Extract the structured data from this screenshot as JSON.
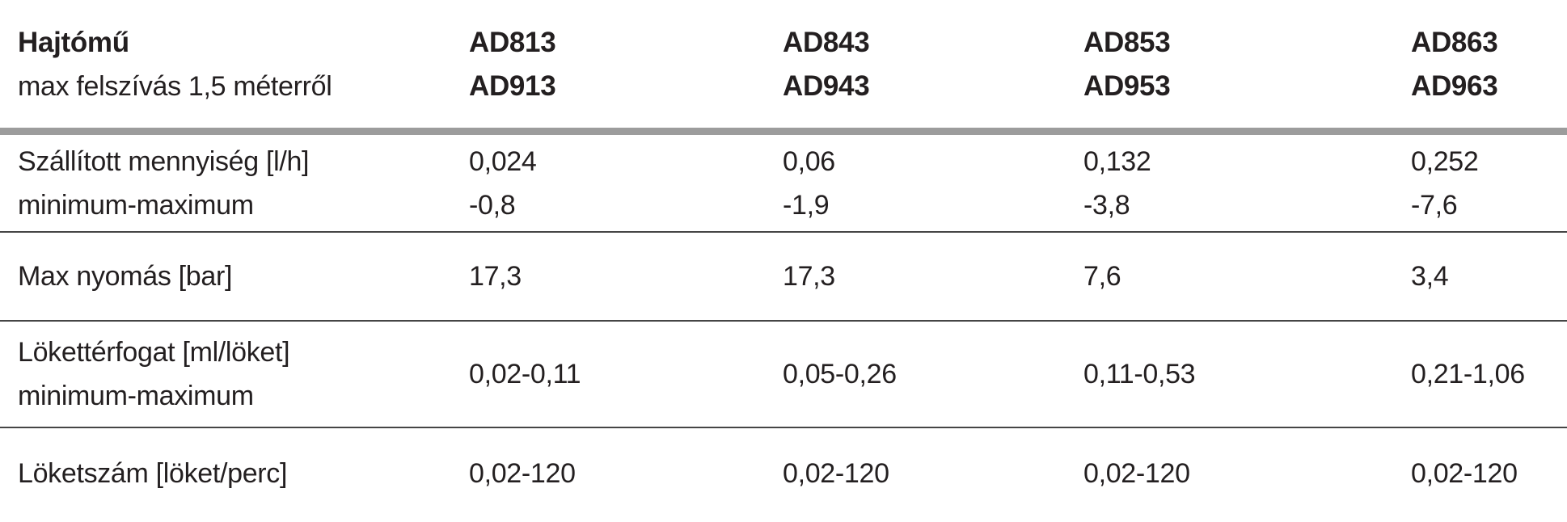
{
  "document": {
    "header": {
      "title": "Hajtómű",
      "subtitle": "max felszívás 1,5 méterről",
      "columns": [
        {
          "line1": "AD813",
          "line2": "AD913"
        },
        {
          "line1": "AD843",
          "line2": "AD943"
        },
        {
          "line1": "AD853",
          "line2": "AD953"
        },
        {
          "line1": "AD863",
          "line2": "AD963"
        }
      ]
    },
    "rows": [
      {
        "label_line1": "Szállított mennyiség [l/h]",
        "label_line2": "minimum-maximum",
        "values": [
          {
            "line1": "0,024",
            "line2": "-0,8"
          },
          {
            "line1": "0,06",
            "line2": "-1,9"
          },
          {
            "line1": "0,132",
            "line2": "-3,8"
          },
          {
            "line1": "0,252",
            "line2": "-7,6"
          }
        ]
      },
      {
        "label_line1": "Max nyomás [bar]",
        "values": [
          "17,3",
          "17,3",
          "7,6",
          "3,4"
        ]
      },
      {
        "label_line1": "Lökettérfogat [ml/löket]",
        "label_line2": "minimum-maximum",
        "values": [
          "0,02-0,11",
          "0,05-0,26",
          "0,11-0,53",
          "0,21-1,06"
        ]
      },
      {
        "label_line1": "Löketszám [löket/perc]",
        "values": [
          "0,02-120",
          "0,02-120",
          "0,02-120",
          "0,02-120"
        ]
      }
    ],
    "colors": {
      "text": "#231f20",
      "thick_rule": "#9c9c9c",
      "thin_rule": "#454545",
      "background": "#ffffff"
    }
  }
}
